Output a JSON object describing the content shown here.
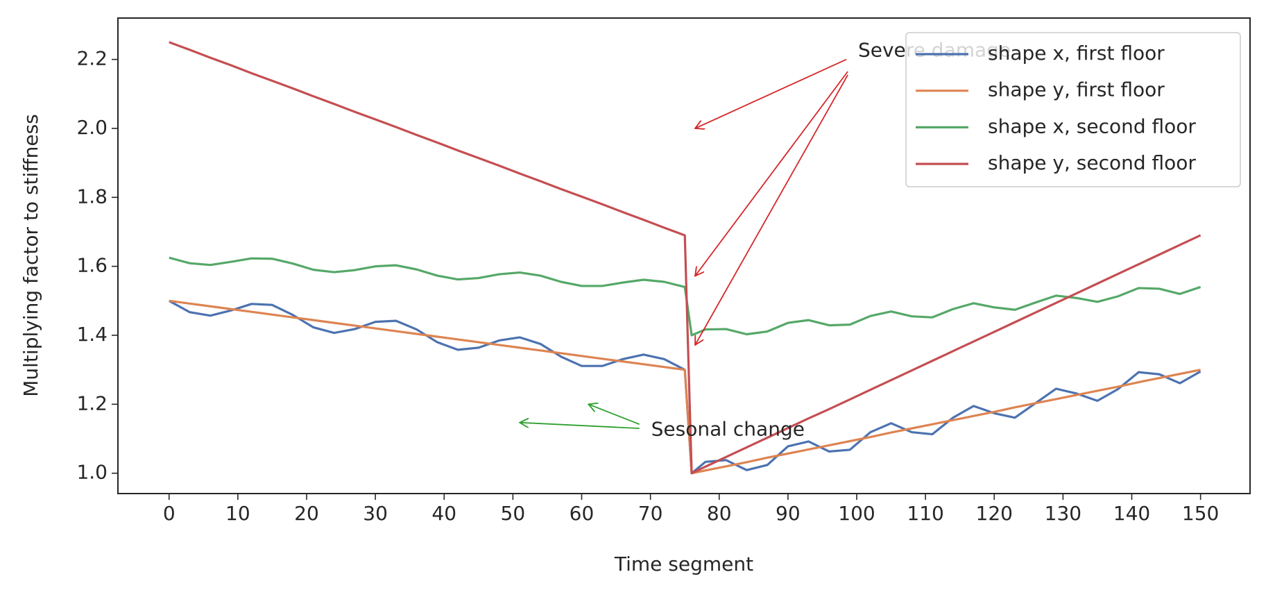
{
  "chart_data": {
    "type": "line",
    "x_label": "Time segment",
    "y_label": "Multiplying factor to stiffness",
    "x": [
      0,
      3,
      6,
      9,
      12,
      15,
      18,
      21,
      24,
      27,
      30,
      33,
      36,
      39,
      42,
      45,
      48,
      51,
      54,
      57,
      60,
      63,
      66,
      69,
      72,
      75,
      76,
      78,
      81,
      84,
      87,
      90,
      93,
      96,
      99,
      102,
      105,
      108,
      111,
      114,
      117,
      120,
      123,
      126,
      129,
      132,
      135,
      138,
      141,
      144,
      147,
      150
    ],
    "series": [
      {
        "name": "shape x, first floor",
        "color": "#4c72b0",
        "values": [
          1.5,
          1.467,
          1.457,
          1.472,
          1.491,
          1.488,
          1.459,
          1.423,
          1.407,
          1.418,
          1.439,
          1.442,
          1.417,
          1.38,
          1.358,
          1.364,
          1.385,
          1.394,
          1.375,
          1.338,
          1.311,
          1.311,
          1.331,
          1.344,
          1.331,
          1.3,
          1.0,
          1.033,
          1.038,
          1.009,
          1.024,
          1.078,
          1.092,
          1.063,
          1.068,
          1.119,
          1.145,
          1.119,
          1.113,
          1.161,
          1.195,
          1.174,
          1.161,
          1.203,
          1.245,
          1.231,
          1.21,
          1.244,
          1.293,
          1.287,
          1.261,
          1.295
        ]
      },
      {
        "name": "shape y, first floor",
        "color": "#dd8452",
        "values": [
          1.5,
          1.492,
          1.484,
          1.476,
          1.468,
          1.46,
          1.452,
          1.444,
          1.436,
          1.428,
          1.42,
          1.412,
          1.404,
          1.396,
          1.388,
          1.38,
          1.372,
          1.364,
          1.356,
          1.348,
          1.34,
          1.332,
          1.324,
          1.316,
          1.308,
          1.3,
          1.0,
          1.008,
          1.02,
          1.032,
          1.045,
          1.057,
          1.069,
          1.081,
          1.093,
          1.105,
          1.118,
          1.13,
          1.142,
          1.154,
          1.166,
          1.178,
          1.191,
          1.203,
          1.215,
          1.227,
          1.239,
          1.251,
          1.264,
          1.276,
          1.288,
          1.3
        ]
      },
      {
        "name": "shape x, second floor",
        "color": "#55a868",
        "values": [
          1.625,
          1.609,
          1.604,
          1.613,
          1.623,
          1.622,
          1.608,
          1.59,
          1.583,
          1.589,
          1.6,
          1.603,
          1.591,
          1.573,
          1.562,
          1.566,
          1.577,
          1.582,
          1.573,
          1.555,
          1.543,
          1.543,
          1.553,
          1.561,
          1.555,
          1.54,
          1.4,
          1.417,
          1.418,
          1.403,
          1.411,
          1.436,
          1.444,
          1.429,
          1.431,
          1.456,
          1.469,
          1.455,
          1.452,
          1.476,
          1.493,
          1.481,
          1.474,
          1.495,
          1.515,
          1.508,
          1.497,
          1.513,
          1.537,
          1.535,
          1.52,
          1.54
        ]
      },
      {
        "name": "shape y, second floor",
        "color": "#c44e52",
        "values": [
          2.25,
          2.228,
          2.205,
          2.183,
          2.16,
          2.138,
          2.116,
          2.093,
          2.071,
          2.048,
          2.026,
          2.004,
          1.981,
          1.959,
          1.936,
          1.914,
          1.892,
          1.869,
          1.847,
          1.824,
          1.802,
          1.78,
          1.757,
          1.735,
          1.712,
          1.69,
          1.0,
          1.019,
          1.047,
          1.075,
          1.103,
          1.131,
          1.159,
          1.186,
          1.214,
          1.242,
          1.27,
          1.298,
          1.326,
          1.354,
          1.382,
          1.41,
          1.438,
          1.466,
          1.494,
          1.522,
          1.55,
          1.578,
          1.606,
          1.634,
          1.662,
          1.69
        ]
      }
    ],
    "xlim": [
      -7.44,
      157.2
    ],
    "ylim": [
      0.941,
      2.32
    ],
    "xticks": [
      0,
      10,
      20,
      30,
      40,
      50,
      60,
      70,
      80,
      90,
      100,
      110,
      120,
      130,
      140,
      150
    ],
    "yticks": [
      {
        "value": 1.0,
        "label": "1.0"
      },
      {
        "value": 1.2,
        "label": "1.2"
      },
      {
        "value": 1.4,
        "label": "1.4"
      },
      {
        "value": 1.6,
        "label": "1.6"
      },
      {
        "value": 1.8,
        "label": "1.8"
      },
      {
        "value": 2.0,
        "label": "2.0"
      },
      {
        "value": 2.2,
        "label": "2.2"
      }
    ],
    "legend": "upper right",
    "annotations": [
      {
        "text": "Severe damage",
        "color": "#d62728"
      },
      {
        "text": "Sesonal change",
        "color": "#2ca02c"
      }
    ]
  }
}
